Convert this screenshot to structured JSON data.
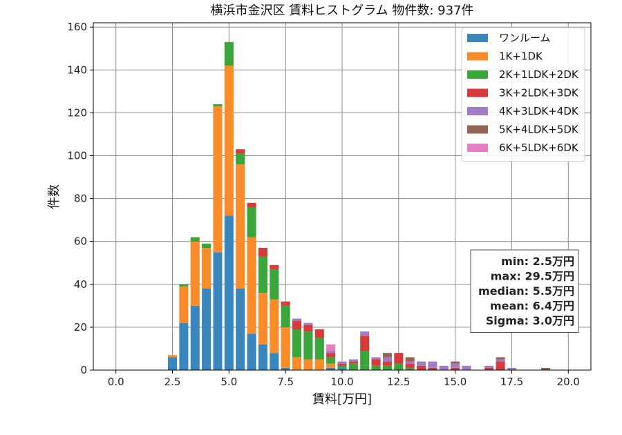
{
  "chart_data": {
    "type": "bar",
    "stacked": true,
    "title": "横浜市金沢区 賃料ヒストグラム  物件数: 937件",
    "xlabel": "賃料[万円]",
    "ylabel": "件数",
    "xlim": [
      -1.0,
      21.0
    ],
    "ylim": [
      0,
      162
    ],
    "xticks": [
      0.0,
      2.5,
      5.0,
      7.5,
      10.0,
      12.5,
      15.0,
      17.5,
      20.0
    ],
    "xtick_labels": [
      "0.0",
      "2.5",
      "5.0",
      "7.5",
      "10.0",
      "12.5",
      "15.0",
      "17.5",
      "20.0"
    ],
    "yticks": [
      0,
      20,
      40,
      60,
      80,
      100,
      120,
      140,
      160
    ],
    "ytick_labels": [
      "0",
      "20",
      "40",
      "60",
      "80",
      "100",
      "120",
      "140",
      "160"
    ],
    "grid": true,
    "legend_position": "top-right",
    "bin_width": 0.5,
    "bins": [
      2.5,
      3.0,
      3.5,
      4.0,
      4.5,
      5.0,
      5.5,
      6.0,
      6.5,
      7.0,
      7.5,
      8.0,
      8.5,
      9.0,
      9.5,
      10.0,
      10.5,
      11.0,
      11.5,
      12.0,
      12.5,
      13.0,
      13.5,
      14.0,
      14.5,
      15.0,
      15.5,
      16.0,
      16.5,
      17.0,
      17.5,
      18.0,
      18.5,
      19.0
    ],
    "series": [
      {
        "name": "ワンルーム",
        "color": "#3a87bf",
        "values": [
          6,
          22,
          30,
          38,
          55,
          72,
          38,
          17,
          12,
          8,
          1,
          0,
          0,
          0,
          1,
          1,
          0,
          0,
          0,
          0,
          0,
          0,
          0,
          0,
          0,
          0,
          0,
          0,
          0,
          0,
          0,
          0,
          0,
          0
        ]
      },
      {
        "name": "1K+1DK",
        "color": "#f98b2a",
        "values": [
          1,
          17,
          30,
          19,
          68,
          70,
          58,
          45,
          24,
          25,
          19,
          6,
          5,
          5,
          2,
          0,
          0,
          0,
          0,
          0,
          0,
          0,
          0,
          0,
          0,
          0,
          0,
          0,
          0,
          0,
          0,
          0,
          0,
          0
        ]
      },
      {
        "name": "2K+1LDK+2DK",
        "color": "#3aa53a",
        "values": [
          0,
          1,
          2,
          2,
          1,
          11,
          5,
          14,
          17,
          14,
          10,
          13,
          13,
          10,
          3,
          1,
          3,
          9,
          2,
          2,
          3,
          1,
          0,
          0,
          0,
          0,
          0,
          0,
          0,
          0,
          0,
          0,
          0,
          0
        ]
      },
      {
        "name": "3K+2LDK+3DK",
        "color": "#d63a3a",
        "values": [
          0,
          0,
          0,
          0,
          0,
          0,
          2,
          2,
          4,
          2,
          2,
          4,
          3,
          4,
          2,
          1,
          1,
          7,
          3,
          2,
          5,
          2,
          2,
          1,
          0,
          1,
          0,
          0,
          1,
          4,
          0,
          0,
          0,
          0
        ]
      },
      {
        "name": "4K+3LDK+4DK",
        "color": "#a07cc8",
        "values": [
          0,
          0,
          0,
          0,
          0,
          0,
          0,
          0,
          0,
          0,
          0,
          1,
          1,
          0,
          1,
          1,
          1,
          2,
          1,
          2,
          0,
          1,
          2,
          3,
          2,
          2,
          2,
          0,
          1,
          1,
          1,
          0,
          0,
          0
        ]
      },
      {
        "name": "5K+4LDK+5DK",
        "color": "#966454",
        "values": [
          0,
          0,
          0,
          0,
          0,
          0,
          0,
          0,
          0,
          0,
          0,
          0,
          0,
          0,
          0,
          0,
          0,
          0,
          0,
          2,
          0,
          2,
          0,
          0,
          0,
          1,
          0,
          0,
          0,
          1,
          0,
          0,
          0,
          1
        ]
      },
      {
        "name": "6K+5LDK+6DK",
        "color": "#e67fc4",
        "values": [
          0,
          0,
          0,
          0,
          0,
          0,
          0,
          0,
          0,
          0,
          0,
          0,
          0,
          0,
          3,
          0,
          0,
          0,
          0,
          0,
          0,
          0,
          0,
          0,
          0,
          0,
          0,
          0,
          0,
          0,
          0,
          0,
          0,
          0
        ]
      }
    ],
    "stats_box": {
      "position": "right-middle",
      "lines": [
        "min: 2.5万円",
        "max: 29.5万円",
        "median: 5.5万円",
        "mean: 6.4万円",
        "Sigma: 3.0万円"
      ]
    }
  }
}
